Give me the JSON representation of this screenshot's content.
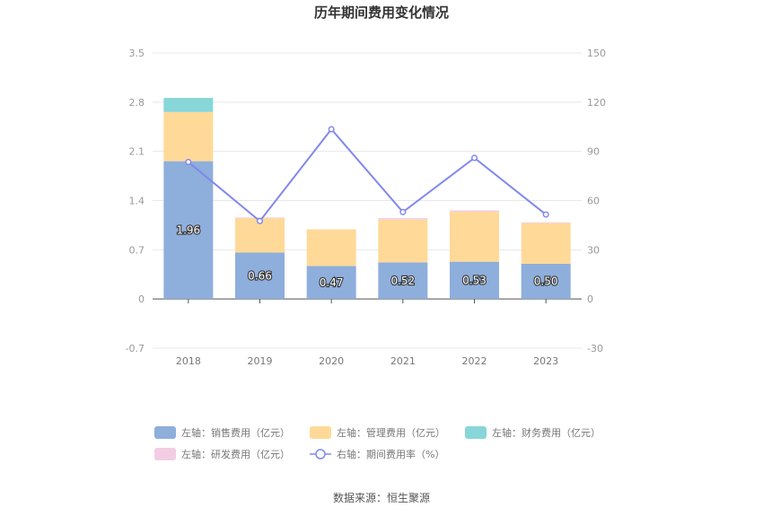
{
  "chart_data": {
    "type": "bar",
    "title": "历年期间费用变化情况",
    "categories": [
      "2018",
      "2019",
      "2020",
      "2021",
      "2022",
      "2023"
    ],
    "left_axis": {
      "min": -0.7,
      "max": 3.5,
      "ticks": [
        "3.5",
        "2.8",
        "2.1",
        "1.4",
        "0.7",
        "0",
        "-0.7"
      ]
    },
    "right_axis": {
      "min": -30,
      "max": 150,
      "ticks": [
        "150",
        "120",
        "90",
        "60",
        "30",
        "0",
        "-30"
      ]
    },
    "stacked": true,
    "series": [
      {
        "name": "左轴：销售费用（亿元）",
        "axis": "left",
        "color": "#8eaedc",
        "values": [
          1.96,
          0.66,
          0.47,
          0.52,
          0.53,
          0.5
        ],
        "labels": [
          "1.96",
          "0.66",
          "0.47",
          "0.52",
          "0.53",
          "0.50"
        ]
      },
      {
        "name": "左轴：管理费用（亿元）",
        "axis": "left",
        "color": "#ffd998",
        "values": [
          0.7,
          0.49,
          0.52,
          0.61,
          0.71,
          0.58
        ]
      },
      {
        "name": "左轴：财务费用（亿元）",
        "axis": "left",
        "color": "#87d6d8",
        "values": [
          0.2,
          0.0,
          0.0,
          0.0,
          0.0,
          0.0
        ]
      },
      {
        "name": "左轴：研发费用（亿元）",
        "axis": "left",
        "color": "#f2cde4",
        "values": [
          0.0,
          0.01,
          0.0,
          0.02,
          0.02,
          0.01
        ]
      },
      {
        "name": "右轴：期间费用率（%）",
        "axis": "right",
        "type": "line",
        "color": "#8188ec",
        "values": [
          83.5,
          47.5,
          103.5,
          53.0,
          86.0,
          51.5
        ]
      }
    ],
    "grid": true,
    "legend_position": "bottom"
  },
  "source": "数据来源：恒生聚源"
}
